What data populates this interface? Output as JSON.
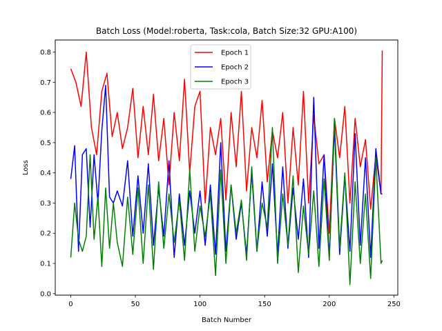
{
  "chart_data": {
    "type": "line",
    "title": "Batch Loss (Model:roberta, Task:cola, Batch Size:32 GPU:A100)",
    "xlabel": "Batch Number",
    "ylabel": "Loss",
    "xlim": [
      -12,
      253
    ],
    "ylim": [
      -0.005,
      0.84
    ],
    "xticks": [
      0,
      50,
      100,
      150,
      200,
      250
    ],
    "yticks": [
      0.0,
      0.1,
      0.2,
      0.3,
      0.4,
      0.5,
      0.6,
      0.7,
      0.8
    ],
    "grid": false,
    "legend_position": "top-center",
    "series": [
      {
        "name": "Epoch 1",
        "color": "#ff0000",
        "x": [
          0,
          4,
          8,
          12,
          16,
          20,
          24,
          28,
          32,
          36,
          40,
          44,
          48,
          52,
          56,
          60,
          64,
          68,
          72,
          76,
          80,
          84,
          88,
          92,
          96,
          100,
          104,
          108,
          112,
          116,
          120,
          124,
          128,
          132,
          136,
          140,
          144,
          148,
          152,
          156,
          160,
          164,
          168,
          172,
          176,
          180,
          184,
          188,
          192,
          196,
          200,
          204,
          208,
          212,
          216,
          220,
          224,
          228,
          232,
          236,
          240,
          241
        ],
        "values": [
          0.745,
          0.7,
          0.62,
          0.8,
          0.55,
          0.46,
          0.67,
          0.73,
          0.52,
          0.6,
          0.48,
          0.55,
          0.68,
          0.45,
          0.62,
          0.46,
          0.66,
          0.44,
          0.58,
          0.36,
          0.6,
          0.44,
          0.71,
          0.4,
          0.62,
          0.67,
          0.3,
          0.55,
          0.46,
          0.58,
          0.31,
          0.6,
          0.42,
          0.67,
          0.34,
          0.55,
          0.45,
          0.64,
          0.37,
          0.54,
          0.45,
          0.6,
          0.3,
          0.55,
          0.36,
          0.67,
          0.3,
          0.59,
          0.43,
          0.46,
          0.2,
          0.58,
          0.45,
          0.62,
          0.3,
          0.58,
          0.42,
          0.51,
          0.28,
          0.46,
          0.33,
          0.805
        ]
      },
      {
        "name": "Epoch 2",
        "color": "#0000ff",
        "x": [
          0,
          3,
          6,
          9,
          12,
          15,
          18,
          21,
          24,
          27,
          30,
          33,
          36,
          40,
          44,
          48,
          52,
          56,
          60,
          64,
          68,
          72,
          76,
          80,
          84,
          88,
          92,
          96,
          100,
          104,
          108,
          112,
          116,
          120,
          124,
          128,
          132,
          136,
          140,
          144,
          148,
          152,
          156,
          160,
          164,
          168,
          172,
          176,
          180,
          184,
          188,
          192,
          196,
          200,
          204,
          208,
          212,
          216,
          220,
          224,
          228,
          232,
          236,
          240,
          241
        ],
        "values": [
          0.38,
          0.49,
          0.14,
          0.46,
          0.48,
          0.22,
          0.46,
          0.3,
          0.54,
          0.69,
          0.32,
          0.3,
          0.34,
          0.29,
          0.44,
          0.19,
          0.39,
          0.2,
          0.43,
          0.16,
          0.35,
          0.19,
          0.44,
          0.12,
          0.33,
          0.16,
          0.34,
          0.2,
          0.34,
          0.16,
          0.36,
          0.13,
          0.5,
          0.14,
          0.36,
          0.18,
          0.3,
          0.13,
          0.4,
          0.14,
          0.37,
          0.19,
          0.43,
          0.13,
          0.42,
          0.15,
          0.35,
          0.18,
          0.38,
          0.12,
          0.65,
          0.15,
          0.46,
          0.12,
          0.55,
          0.13,
          0.39,
          0.14,
          0.53,
          0.16,
          0.45,
          0.12,
          0.48,
          0.33,
          0.33
        ]
      },
      {
        "name": "Epoch 3",
        "color": "#008000",
        "x": [
          0,
          3,
          6,
          9,
          12,
          15,
          18,
          21,
          24,
          27,
          30,
          33,
          36,
          40,
          44,
          48,
          52,
          56,
          60,
          64,
          68,
          72,
          76,
          80,
          84,
          88,
          92,
          96,
          100,
          104,
          108,
          112,
          116,
          120,
          124,
          128,
          132,
          136,
          140,
          144,
          148,
          152,
          156,
          160,
          164,
          168,
          172,
          176,
          180,
          184,
          188,
          192,
          196,
          200,
          204,
          208,
          212,
          216,
          220,
          224,
          228,
          232,
          236,
          240,
          241
        ],
        "values": [
          0.12,
          0.3,
          0.18,
          0.14,
          0.19,
          0.46,
          0.18,
          0.32,
          0.09,
          0.35,
          0.15,
          0.3,
          0.17,
          0.09,
          0.32,
          0.13,
          0.35,
          0.1,
          0.36,
          0.08,
          0.37,
          0.15,
          0.33,
          0.17,
          0.31,
          0.11,
          0.41,
          0.14,
          0.29,
          0.19,
          0.33,
          0.06,
          0.41,
          0.1,
          0.36,
          0.2,
          0.31,
          0.11,
          0.42,
          0.14,
          0.3,
          0.22,
          0.55,
          0.1,
          0.33,
          0.16,
          0.39,
          0.07,
          0.29,
          0.13,
          0.34,
          0.09,
          0.38,
          0.11,
          0.58,
          0.15,
          0.4,
          0.03,
          0.37,
          0.1,
          0.33,
          0.05,
          0.45,
          0.1,
          0.11
        ]
      }
    ]
  }
}
